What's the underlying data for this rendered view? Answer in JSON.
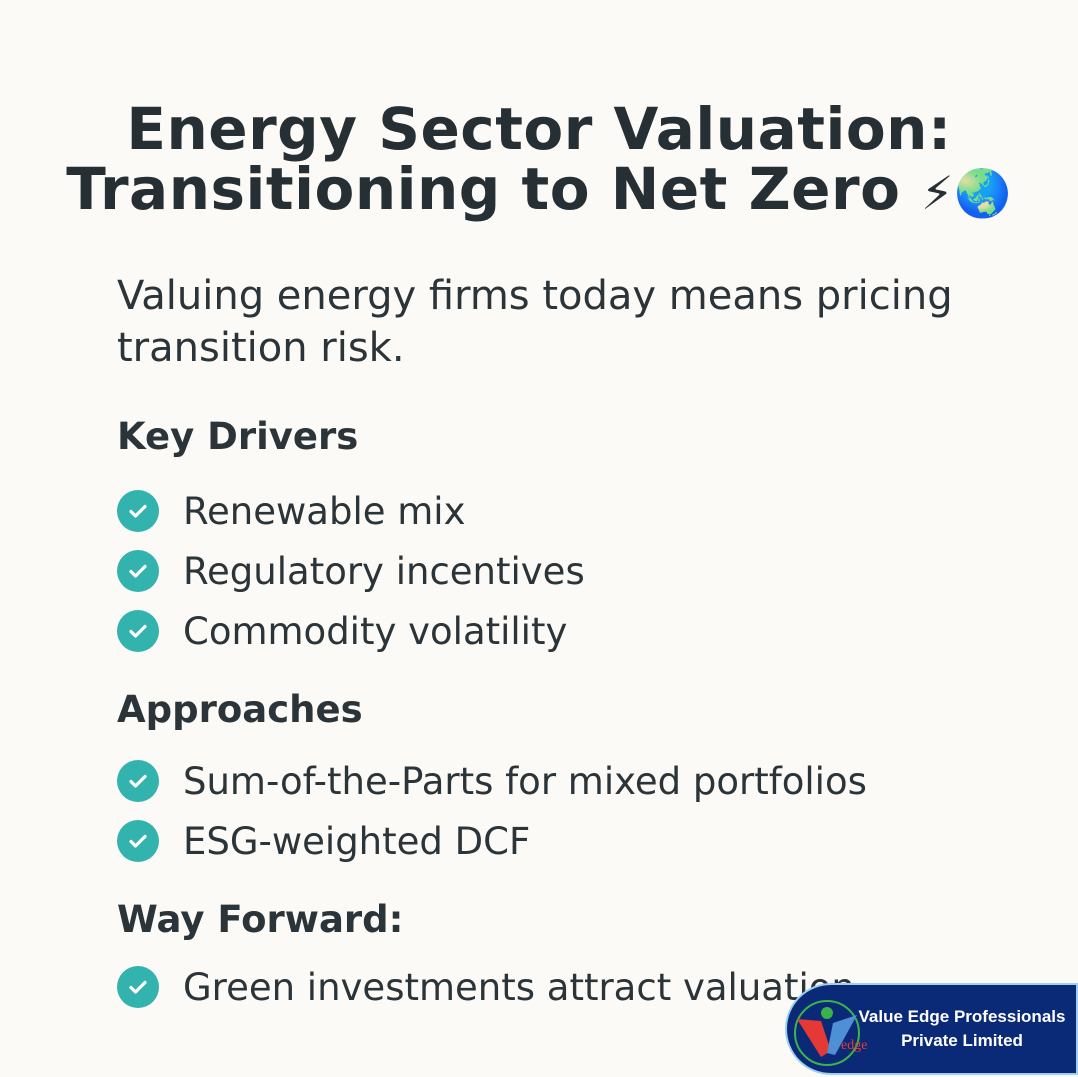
{
  "title": {
    "line1": "Energy Sector Valuation:",
    "line2": "Transitioning to Net Zero",
    "emoji": [
      "⚡",
      "🌏"
    ]
  },
  "subtitle": "Valuing energy firms today means pricing transition risk.",
  "sections": [
    {
      "heading": "Key Drivers",
      "items": [
        "Renewable mix",
        "Regulatory incentives",
        "Commodity volatility"
      ]
    },
    {
      "heading": "Approaches",
      "items": [
        "Sum-of-the-Parts for mixed portfolios",
        "ESG-weighted DCF"
      ]
    },
    {
      "heading": "Way Forward:",
      "items": [
        "Green investments attract valuation"
      ]
    }
  ],
  "logo": {
    "line1": "Value Edge Professionals",
    "line2": "Private Limited",
    "mark_text": "edge"
  },
  "colors": {
    "check": "#33b3ad",
    "logo_bg": "#0a2a78",
    "text": "#263034"
  }
}
